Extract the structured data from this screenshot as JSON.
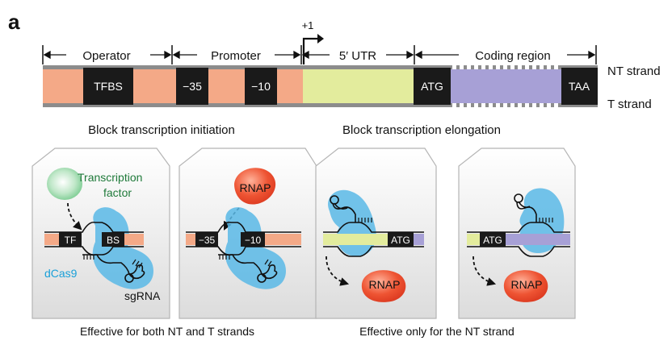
{
  "panel_label": "a",
  "regions": {
    "operator": "Operator",
    "promoter": "Promoter",
    "utr": "5′ UTR",
    "coding": "Coding region",
    "tss": "+1"
  },
  "gene_boxes": {
    "tfbs": "TFBS",
    "m35": "−35",
    "m10": "−10",
    "atg": "ATG",
    "taa": "TAA"
  },
  "strands": {
    "nt": "NT strand",
    "t": "T strand"
  },
  "headings": {
    "initiation": "Block transcription initiation",
    "elongation": "Block transcription elongation"
  },
  "panels": {
    "p1": {
      "tf_line1": "Transcription",
      "tf_line2": "factor",
      "tf_box": "TF",
      "bs_box": "BS",
      "dcas9": "dCas9",
      "sgrna": "sgRNA"
    },
    "p2": {
      "rnap": "RNAP",
      "m35": "−35",
      "m10": "−10"
    },
    "p3": {
      "atg": "ATG",
      "rnap": "RNAP"
    },
    "p4": {
      "atg": "ATG",
      "rnap": "RNAP"
    }
  },
  "footers": {
    "both": "Effective for both NT and T strands",
    "nt_only": "Effective only for the NT strand"
  },
  "colors": {
    "salmon": "#f4a987",
    "utr": "#e3ec9d",
    "coding": "#a7a0d6",
    "box": "#1a1a1a",
    "strand": "#8c8c8c",
    "dcas9": "#59b9e6",
    "tf_green": "#1f7a3a",
    "rnap": "#e8452a",
    "dcas9_text": "#1aa0d8"
  }
}
